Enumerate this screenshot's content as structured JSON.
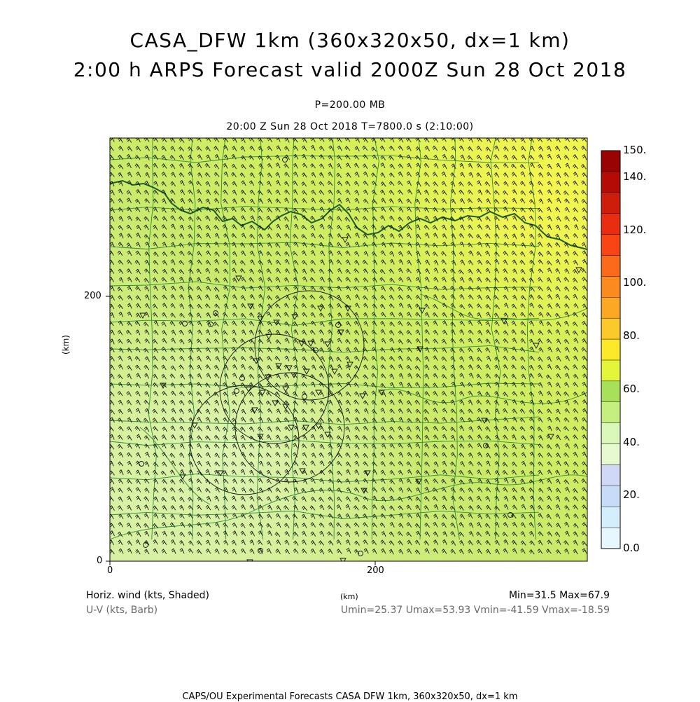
{
  "title": {
    "line1": "CASA_DFW 1km (360x320x50, dx=1 km)",
    "line2": "2:00 h ARPS Forecast valid 2000Z Sun 28 Oct 2018"
  },
  "subtitle": {
    "level": "P=200.00 MB",
    "time": "20:00 Z Sun 28 Oct 2018   T=7800.0 s (2:10:00)"
  },
  "axes": {
    "x_unit": "(km)",
    "y_unit": "(km)",
    "x_ticks": [
      "0",
      "200"
    ],
    "y_ticks": [
      "0",
      "200"
    ],
    "x_range_km": [
      0,
      360
    ],
    "y_range_km": [
      0,
      320
    ]
  },
  "colorbar": {
    "labels": [
      "0.0",
      "20.",
      "40.",
      "60.",
      "80.",
      "100.",
      "120.",
      "140.",
      "150."
    ],
    "levels": [
      0,
      150
    ],
    "colors": [
      "#e6f7ff",
      "#d4edfb",
      "#c7dcf6",
      "#cfd8f5",
      "#e6f9cf",
      "#d9f7b8",
      "#c4ee7e",
      "#a9e05a",
      "#e4f63a",
      "#fbe92a",
      "#fcc92a",
      "#fca825",
      "#fb8a1f",
      "#fb6a1a",
      "#f94414",
      "#e82d10",
      "#cf1d0c",
      "#b50b06",
      "#9a0303"
    ]
  },
  "field": {
    "name": "Horiz. wind (kts, Shaded)",
    "vector_name": "U-V (kts, Barb)",
    "min_max": "Min=31.5 Max=67.9",
    "uv_range": "Umin=25.37 Umax=53.93 Vmin=-41.59 Vmax=-18.59",
    "min": 31.5,
    "max": 67.9,
    "shading_colors": [
      "#dff5b0",
      "#cfeb7e",
      "#c8ea5c",
      "#e2f74a",
      "#eaf647"
    ]
  },
  "footer": "CAPS/OU Experimental Forecasts  CASA DFW 1km, 360x320x50, dx=1 km"
}
